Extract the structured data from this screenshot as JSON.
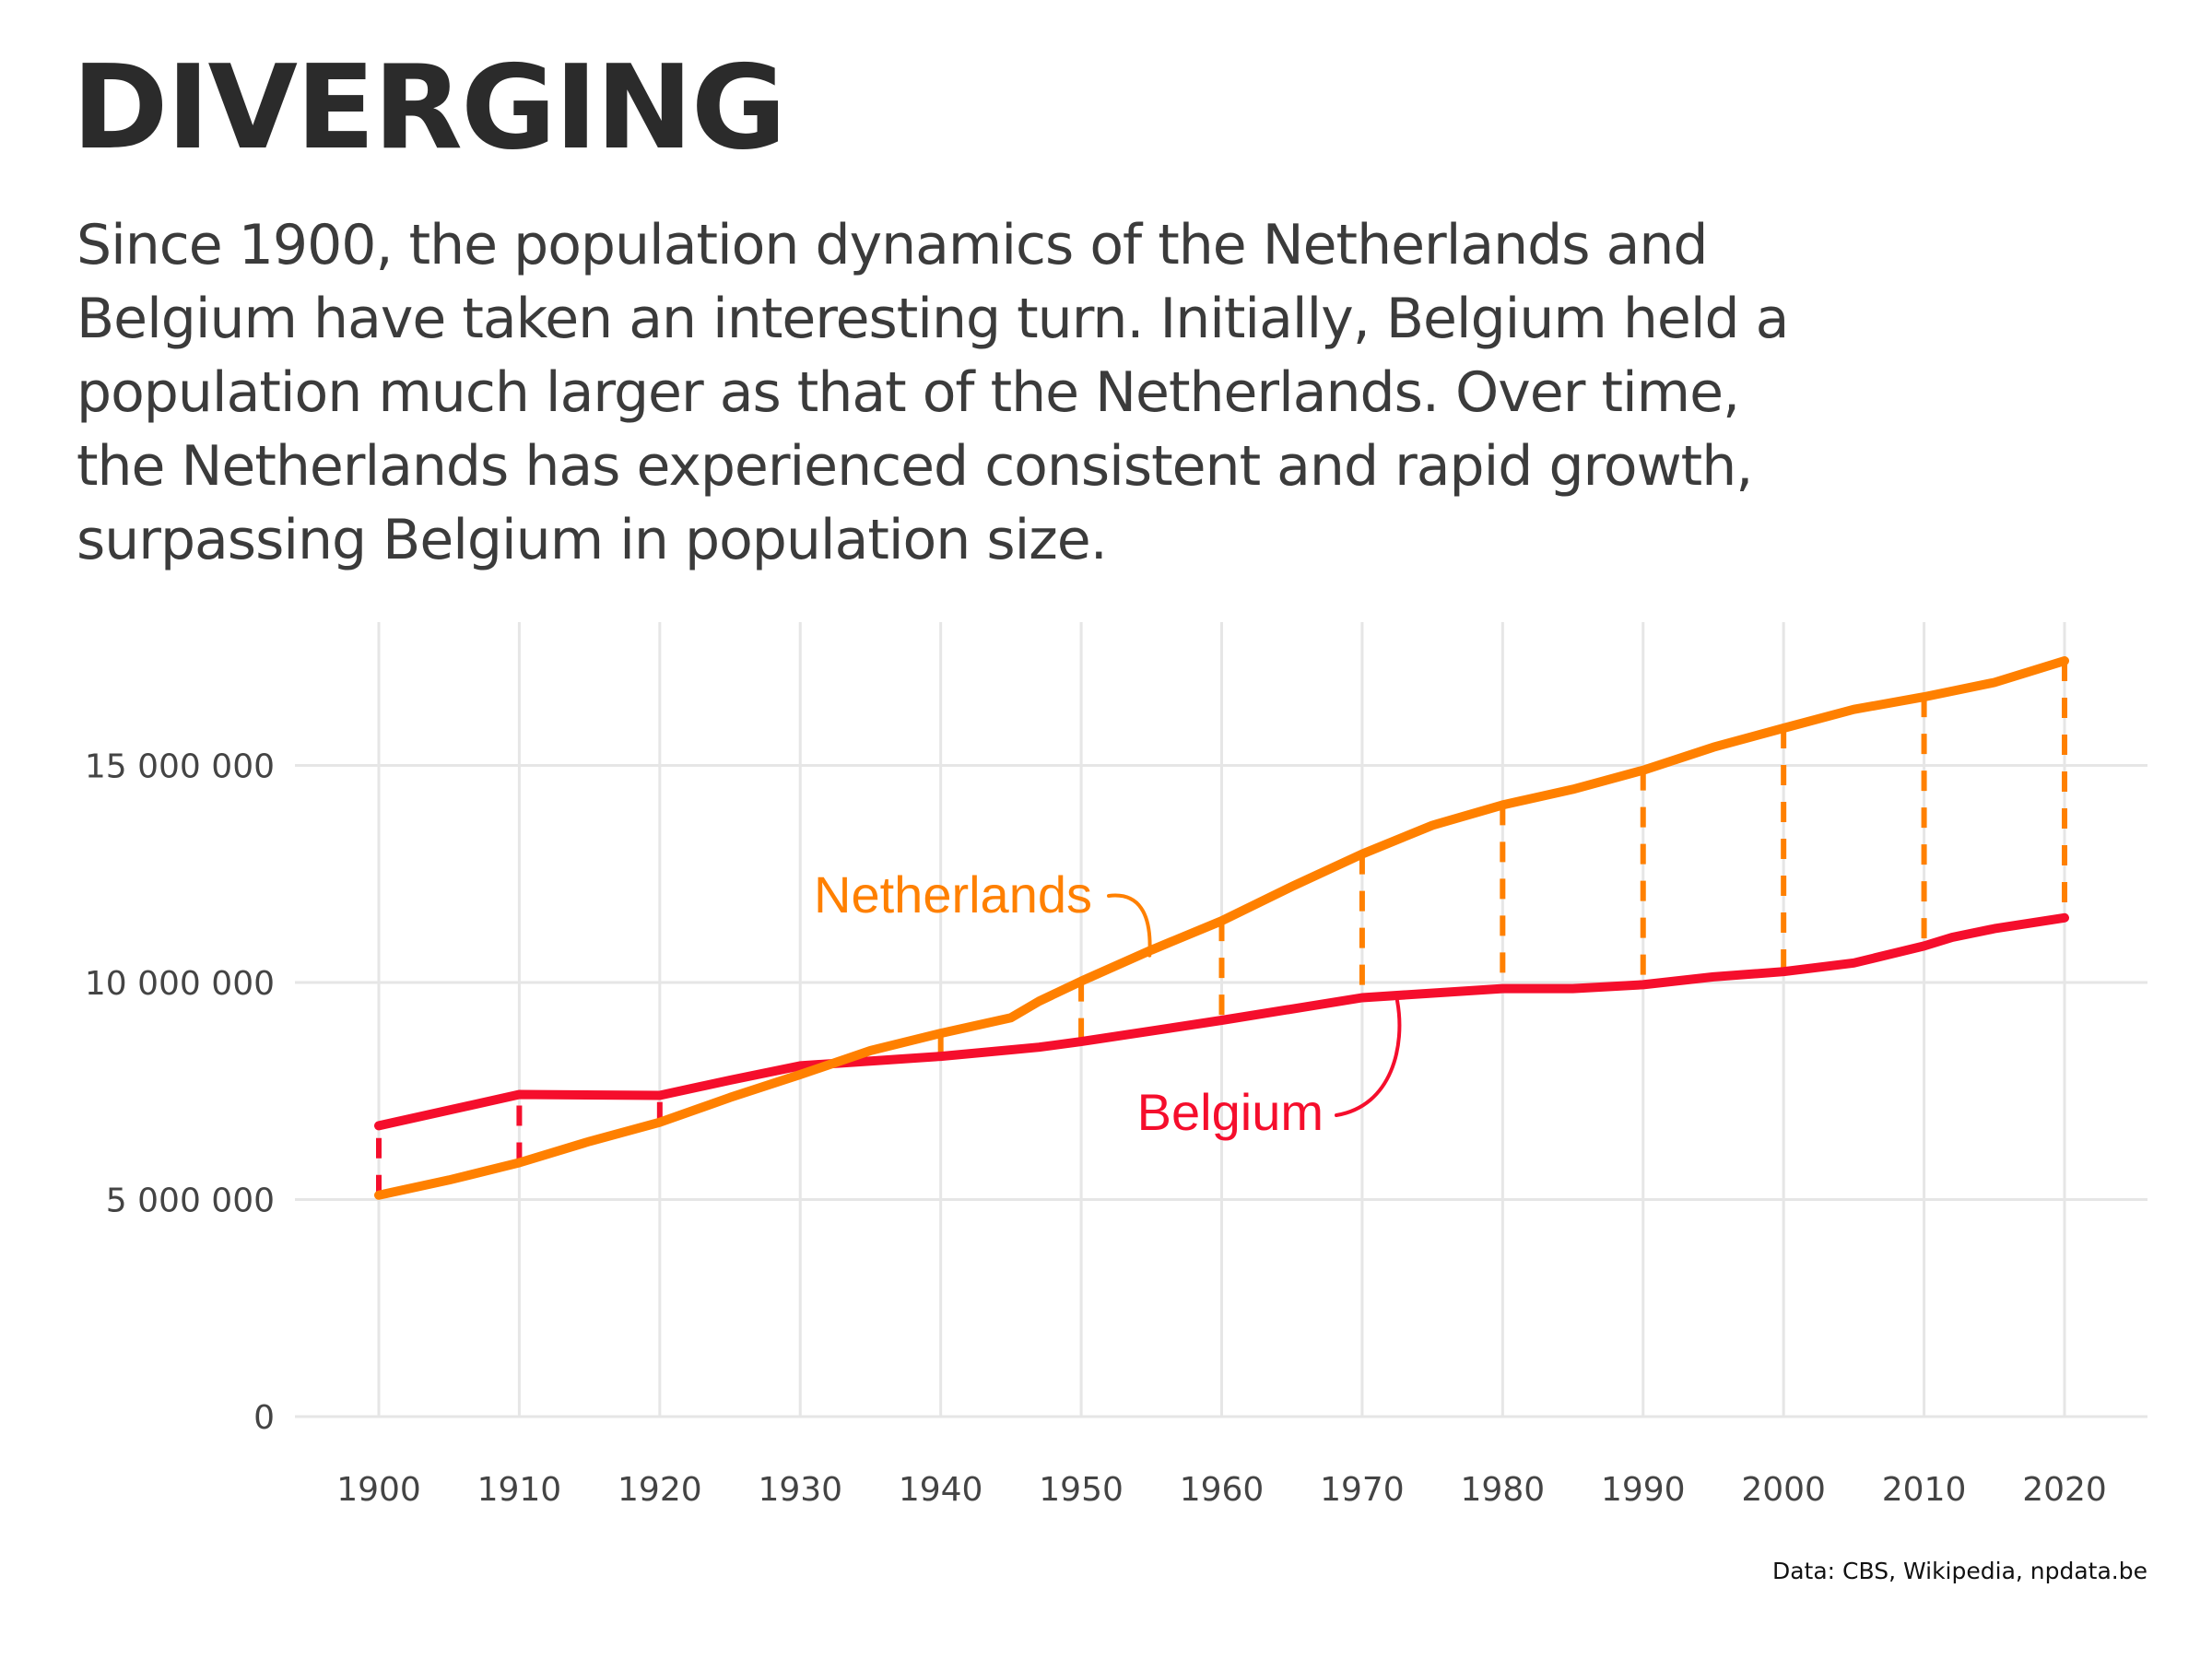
{
  "title": "DIVERGING",
  "subtitle": "Since 1900, the population dynamics of the Netherlands and Belgium have taken an interesting turn. Initially, Belgium held a population much larger as that of the Netherlands. Over time, the Netherlands has experienced consistent and rapid growth, surpassing Belgium in population size.",
  "caption": "Data: CBS, Wikipedia, npdata.be",
  "colors": {
    "netherlands": "#ff8000",
    "belgium": "#f50e2c",
    "grid": "#e6e6e6",
    "text": "#2b2b2b"
  },
  "chart_data": {
    "type": "line",
    "title": "",
    "xlabel": "",
    "ylabel": "",
    "xlim": [
      1897,
      2026
    ],
    "ylim": [
      0,
      17600000
    ],
    "x_ticks": [
      1900,
      1910,
      1920,
      1930,
      1940,
      1950,
      1960,
      1970,
      1980,
      1990,
      2000,
      2010,
      2020
    ],
    "x_tick_labels": [
      "1900",
      "1910",
      "1920",
      "1930",
      "1940",
      "1950",
      "1960",
      "1970",
      "1980",
      "1990",
      "2000",
      "2010",
      "2020"
    ],
    "y_ticks": [
      0,
      5000000,
      10000000,
      15000000
    ],
    "y_tick_labels": [
      "0",
      "5 000 000",
      "10 000 000",
      "15 000 000"
    ],
    "grid": true,
    "legend": "direct labels",
    "series": [
      {
        "name": "Netherlands",
        "color": "#ff8000",
        "x": [
          1900,
          1905,
          1910,
          1915,
          1920,
          1925,
          1930,
          1935,
          1940,
          1945,
          1947,
          1950,
          1955,
          1960,
          1965,
          1970,
          1975,
          1980,
          1985,
          1990,
          1995,
          2000,
          2005,
          2010,
          2015,
          2020
        ],
        "y": [
          5100000,
          5450000,
          5850000,
          6340000,
          6780000,
          7350000,
          7880000,
          8430000,
          8830000,
          9190000,
          9570000,
          10030000,
          10750000,
          11420000,
          12210000,
          12960000,
          13620000,
          14090000,
          14450000,
          14890000,
          15420000,
          15860000,
          16290000,
          16580000,
          16910000,
          17410000
        ]
      },
      {
        "name": "Belgium",
        "color": "#f50e2c",
        "x": [
          1900,
          1910,
          1920,
          1925,
          1930,
          1940,
          1947,
          1950,
          1960,
          1970,
          1980,
          1985,
          1990,
          1995,
          2000,
          2005,
          2010,
          2012,
          2015,
          2020
        ],
        "y": [
          6700000,
          7420000,
          7400000,
          7750000,
          8080000,
          8300000,
          8510000,
          8640000,
          9130000,
          9650000,
          9860000,
          9860000,
          9950000,
          10130000,
          10250000,
          10450000,
          10840000,
          11040000,
          11240000,
          11490000
        ]
      }
    ],
    "difference_markers_x": [
      1900,
      1910,
      1920,
      1930,
      1940,
      1950,
      1960,
      1970,
      1980,
      1990,
      2000,
      2010,
      2020
    ],
    "annotations": [
      {
        "text": "Netherlands",
        "series": "Netherlands"
      },
      {
        "text": "Belgium",
        "series": "Belgium"
      }
    ]
  }
}
